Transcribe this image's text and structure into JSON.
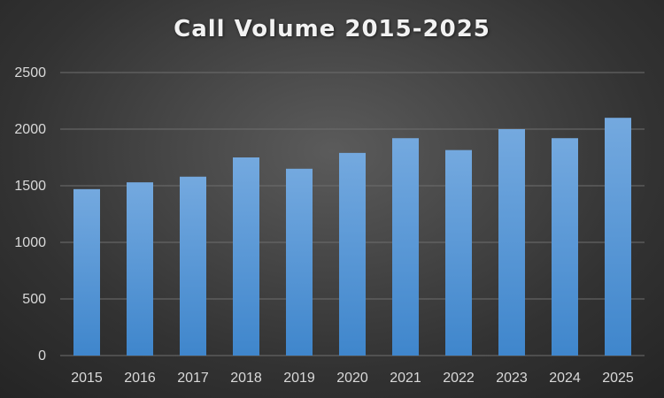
{
  "chart_data": {
    "type": "bar",
    "title": "Call Volume 2015-2025",
    "xlabel": "",
    "ylabel": "",
    "categories": [
      "2015",
      "2016",
      "2017",
      "2018",
      "2019",
      "2020",
      "2021",
      "2022",
      "2023",
      "2024",
      "2025"
    ],
    "values": [
      1470,
      1530,
      1580,
      1750,
      1650,
      1790,
      1920,
      1815,
      2000,
      1920,
      2100
    ],
    "ylim": [
      0,
      2500
    ],
    "yticks": [
      0,
      500,
      1000,
      1500,
      2000,
      2500
    ],
    "grid": true,
    "legend": "none",
    "colors": {
      "bar_top": "#74a9df",
      "bar_bottom": "#3f86cc",
      "gridline": "#6e6e6e",
      "axis_text": "#d9d9d9",
      "title_text": "#f2f2f2"
    }
  }
}
